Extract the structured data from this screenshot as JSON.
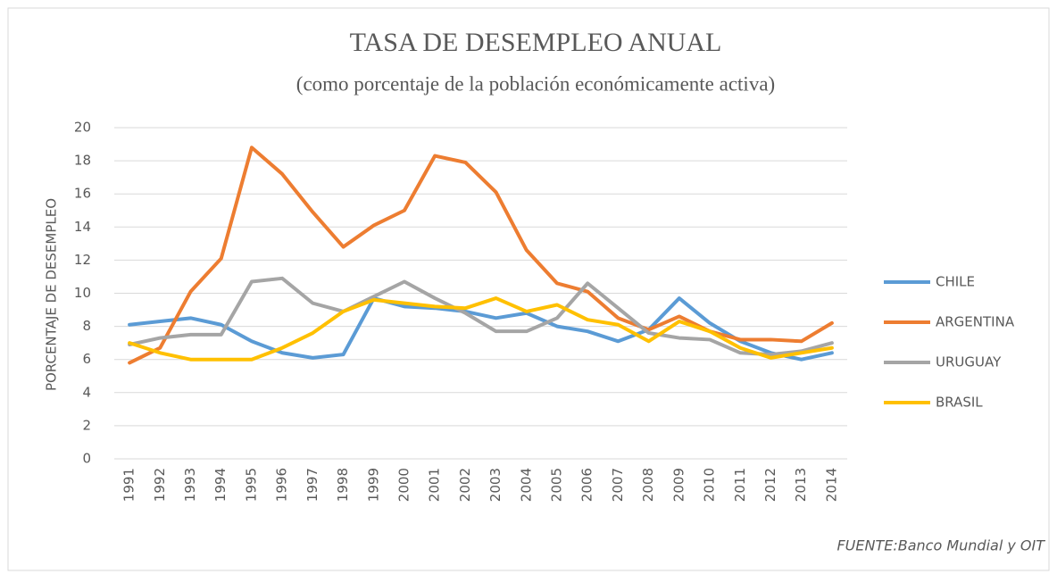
{
  "chart_data": {
    "type": "line",
    "title": "TASA DE DESEMPLEO ANUAL",
    "subtitle": "(como porcentaje de la población  económicamente  activa)",
    "y_label": "PORCENTAJE DE DESEMPLEO",
    "source": "FUENTE:Banco  Mundial y OIT",
    "categories": [
      "1991",
      "1992",
      "1993",
      "1994",
      "1995",
      "1996",
      "1997",
      "1998",
      "1999",
      "2000",
      "2001",
      "2002",
      "2003",
      "2004",
      "2005",
      "2006",
      "2007",
      "2008",
      "2009",
      "2010",
      "2011",
      "2012",
      "2013",
      "2014"
    ],
    "series": [
      {
        "name": "CHILE",
        "color": "#5b9bd5",
        "values": [
          8.1,
          8.3,
          8.5,
          8.1,
          7.1,
          6.4,
          6.1,
          6.3,
          9.7,
          9.2,
          9.1,
          8.9,
          8.5,
          8.8,
          8.0,
          7.7,
          7.1,
          7.8,
          9.7,
          8.2,
          7.1,
          6.4,
          6.0,
          6.4
        ]
      },
      {
        "name": "ARGENTINA",
        "color": "#ed7d31",
        "values": [
          5.8,
          6.7,
          10.1,
          12.1,
          18.8,
          17.2,
          14.9,
          12.8,
          14.1,
          15.0,
          18.3,
          17.9,
          16.1,
          12.6,
          10.6,
          10.1,
          8.5,
          7.8,
          8.6,
          7.7,
          7.2,
          7.2,
          7.1,
          8.2
        ]
      },
      {
        "name": "URUGUAY",
        "color": "#a5a5a5",
        "values": [
          6.9,
          7.3,
          7.5,
          7.5,
          10.7,
          10.9,
          9.4,
          8.9,
          9.8,
          10.7,
          9.7,
          8.8,
          7.7,
          7.7,
          8.5,
          10.6,
          9.1,
          7.6,
          7.3,
          7.2,
          6.4,
          6.3,
          6.5,
          7.0
        ]
      },
      {
        "name": "BRASIL",
        "color": "#ffc000",
        "values": [
          7.0,
          6.4,
          6.0,
          6.0,
          6.0,
          6.7,
          7.6,
          8.9,
          9.6,
          9.4,
          9.2,
          9.1,
          9.7,
          8.9,
          9.3,
          8.4,
          8.1,
          7.1,
          8.3,
          7.7,
          6.7,
          6.1,
          6.4,
          6.7
        ]
      }
    ],
    "ylim": [
      0,
      20
    ],
    "yticks": [
      0,
      2,
      4,
      6,
      8,
      10,
      12,
      14,
      16,
      18,
      20
    ],
    "grid": true,
    "legend": "right"
  }
}
